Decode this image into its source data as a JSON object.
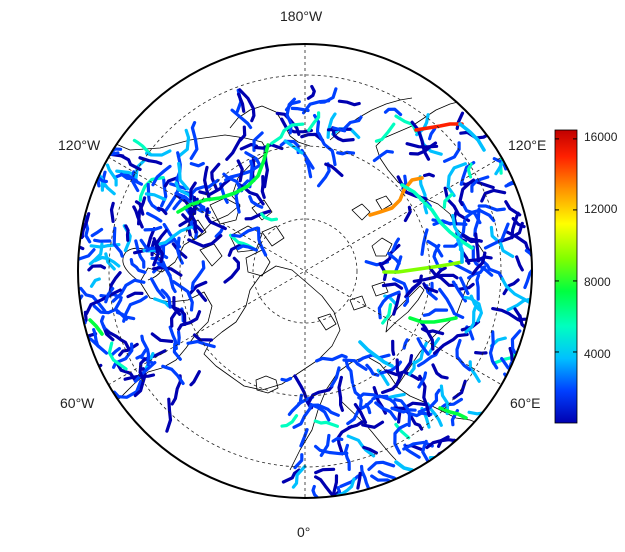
{
  "map": {
    "projection": "north polar stereographic",
    "graticule_style": "dashed",
    "river_palette": "jet",
    "land_outline_color": "#000000",
    "ocean_color": "#ffffff",
    "longitude_labels": {
      "top": "180°W",
      "bottom": "0°",
      "upper_left": "120°W",
      "upper_right": "120°E",
      "lower_left": "60°W",
      "lower_right": "60°E"
    }
  },
  "colorbar": {
    "ticks": [
      "4000",
      "8000",
      "12000",
      "16000"
    ],
    "tick_values": [
      4000,
      8000,
      12000,
      16000
    ],
    "range": [
      0,
      16500
    ],
    "colors": [
      "#0000b0",
      "#0040ff",
      "#00c0ff",
      "#00ffc0",
      "#00ff40",
      "#80ff00",
      "#ffff00",
      "#ff9000",
      "#ff2000",
      "#c00000"
    ]
  }
}
